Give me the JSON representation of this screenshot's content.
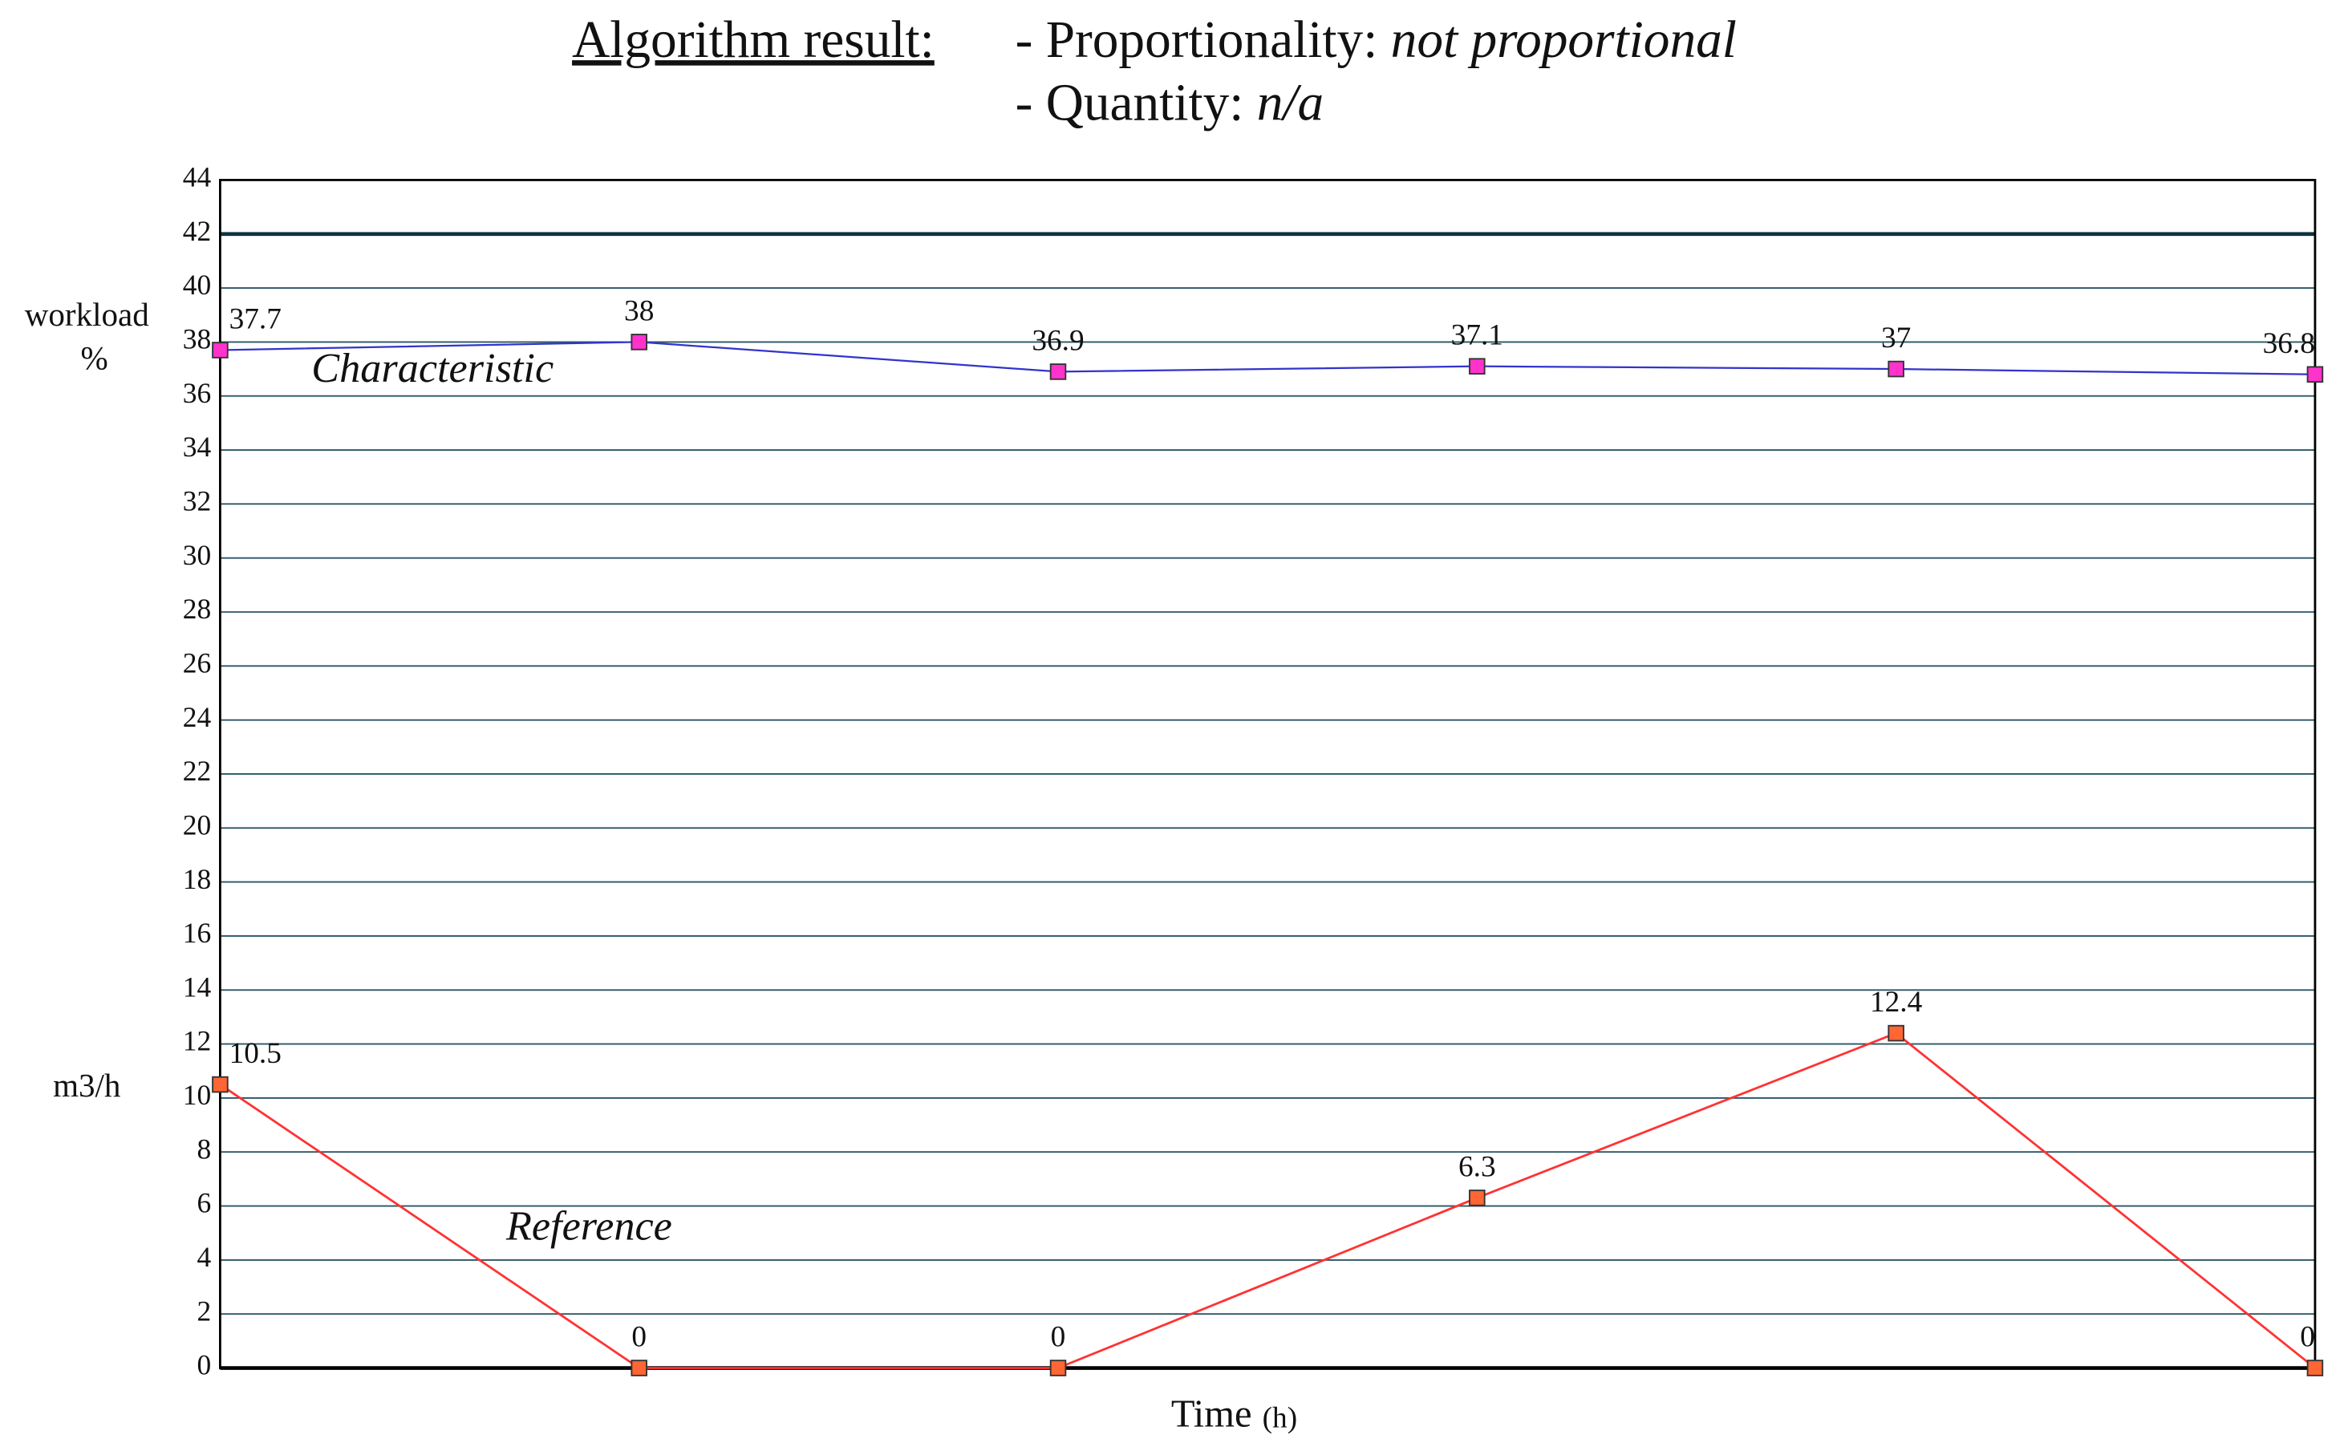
{
  "chart_data": {
    "type": "line",
    "title_parts": {
      "heading": "Algorithm result:",
      "line1_prefix": "- Proportionality: ",
      "line1_value": "not proportional",
      "line2_prefix": "- Quantity: ",
      "line2_value": "n/a"
    },
    "y_axis_labels": {
      "top": [
        "workload",
        "%"
      ],
      "bottom": "m3/h"
    },
    "x_axis_label": {
      "main": "Time",
      "unit": "(h)"
    },
    "categories": [
      null,
      null,
      null,
      null,
      null,
      null
    ],
    "series": [
      {
        "name": "Characteristic",
        "color": "#3333cc",
        "marker_color": "#ff33cc",
        "values": [
          37.7,
          38,
          36.9,
          37.1,
          37,
          36.8
        ]
      },
      {
        "name": "Reference",
        "color": "#ff3333",
        "marker_color": "#ff6633",
        "values": [
          10.5,
          0,
          0,
          6.3,
          12.4,
          0
        ]
      }
    ],
    "ylim": [
      0,
      44
    ],
    "yticks": [
      0,
      2,
      4,
      6,
      8,
      10,
      12,
      14,
      16,
      18,
      20,
      22,
      24,
      26,
      28,
      30,
      32,
      34,
      36,
      38,
      40,
      42,
      44
    ],
    "hline": 42,
    "grid": true
  }
}
